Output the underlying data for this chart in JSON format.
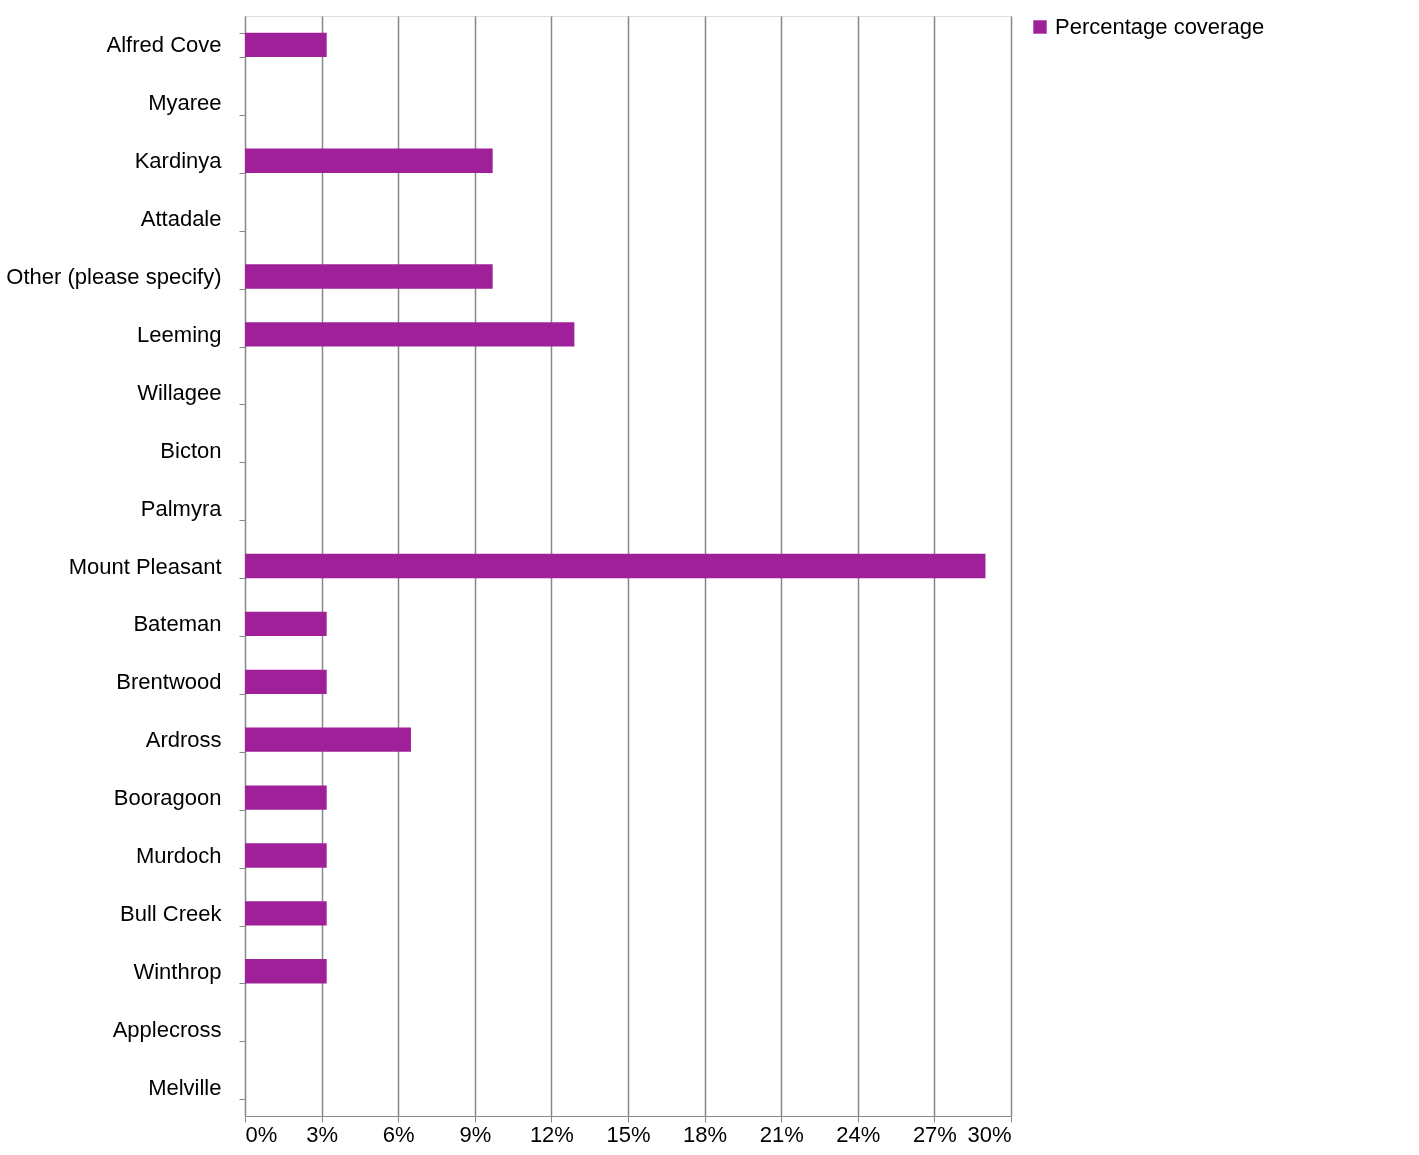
{
  "chart_data": {
    "type": "bar",
    "orientation": "horizontal",
    "categories": [
      "Alfred Cove",
      "Myaree",
      "Kardinya",
      "Attadale",
      "Other (please specify)",
      "Leeming",
      "Willagee",
      "Bicton",
      "Palmyra",
      "Mount Pleasant",
      "Bateman",
      "Brentwood",
      "Ardross",
      "Booragoon",
      "Murdoch",
      "Bull Creek",
      "Winthrop",
      "Applecross",
      "Melville"
    ],
    "series": [
      {
        "name": "Percentage coverage",
        "color": "#a0209a",
        "values": [
          3.2,
          0,
          9.7,
          0,
          9.7,
          12.9,
          0,
          0,
          0,
          29.0,
          3.2,
          3.2,
          6.5,
          3.2,
          3.2,
          3.2,
          3.2,
          0,
          0
        ]
      }
    ],
    "xlim": [
      0,
      30
    ],
    "xticks": [
      {
        "value": 0,
        "label": "0%"
      },
      {
        "value": 3,
        "label": "3%"
      },
      {
        "value": 6,
        "label": "6%"
      },
      {
        "value": 9,
        "label": "9%"
      },
      {
        "value": 12,
        "label": "12%"
      },
      {
        "value": 15,
        "label": "15%"
      },
      {
        "value": 18,
        "label": "18%"
      },
      {
        "value": 21,
        "label": "21%"
      },
      {
        "value": 24,
        "label": "24%"
      },
      {
        "value": 27,
        "label": "27%"
      },
      {
        "value": 30,
        "label": "30%"
      }
    ],
    "grid": "x",
    "legend": "right"
  }
}
